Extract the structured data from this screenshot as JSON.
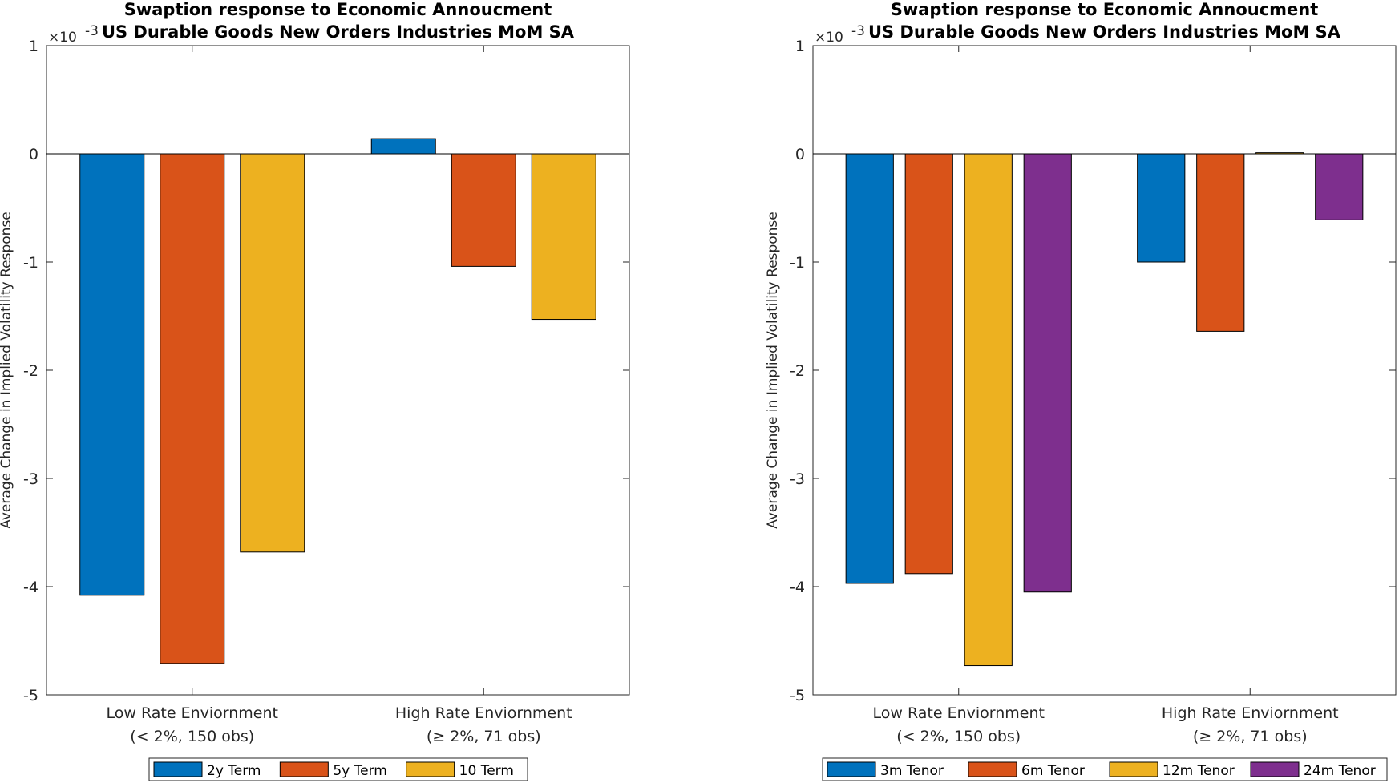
{
  "chart_data": [
    {
      "type": "bar",
      "title": "Swaption response to Economic Annoucment",
      "subtitle": "US Durable Goods New Orders Industries MoM SA",
      "ylabel": "Average Change in Implied Volatility Response",
      "y_exponent_label": "×10",
      "y_exponent": "-3",
      "ylim": [
        -5,
        1
      ],
      "yticks": [
        "1",
        "0",
        "-1",
        "-2",
        "-3",
        "-4",
        "-5"
      ],
      "categories": [
        {
          "line1": "Low Rate Enviornment",
          "line2": "(< 2%, 150 obs)"
        },
        {
          "line1": "High Rate Enviornment",
          "line2": "(≥ 2%, 71 obs)"
        }
      ],
      "series": [
        {
          "name": "2y Term",
          "color": "#0072BD",
          "values": [
            -4.08,
            0.14
          ]
        },
        {
          "name": "5y Term",
          "color": "#D95319",
          "values": [
            -4.71,
            -1.04
          ]
        },
        {
          "name": "10 Term",
          "color": "#EDB120",
          "values": [
            -3.68,
            -1.53
          ]
        }
      ],
      "legend_position": "bottom-center",
      "grid": false
    },
    {
      "type": "bar",
      "title": "Swaption response to Economic Annoucment",
      "subtitle": "US Durable Goods New Orders Industries MoM SA",
      "ylabel": "Average Change in Implied Volatility Response",
      "y_exponent_label": "×10",
      "y_exponent": "-3",
      "ylim": [
        -5,
        1
      ],
      "yticks": [
        "1",
        "0",
        "-1",
        "-2",
        "-3",
        "-4",
        "-5"
      ],
      "categories": [
        {
          "line1": "Low Rate Enviornment",
          "line2": "(< 2%, 150 obs)"
        },
        {
          "line1": "High Rate Enviornment",
          "line2": "(≥ 2%, 71 obs)"
        }
      ],
      "series": [
        {
          "name": "3m Tenor",
          "color": "#0072BD",
          "values": [
            -3.97,
            -1.0
          ]
        },
        {
          "name": "6m Tenor",
          "color": "#D95319",
          "values": [
            -3.88,
            -1.64
          ]
        },
        {
          "name": "12m Tenor",
          "color": "#EDB120",
          "values": [
            -4.73,
            0.01
          ]
        },
        {
          "name": "24m Tenor",
          "color": "#7E2F8E",
          "values": [
            -4.05,
            -0.61
          ]
        }
      ],
      "legend_position": "bottom-center",
      "grid": false
    }
  ]
}
